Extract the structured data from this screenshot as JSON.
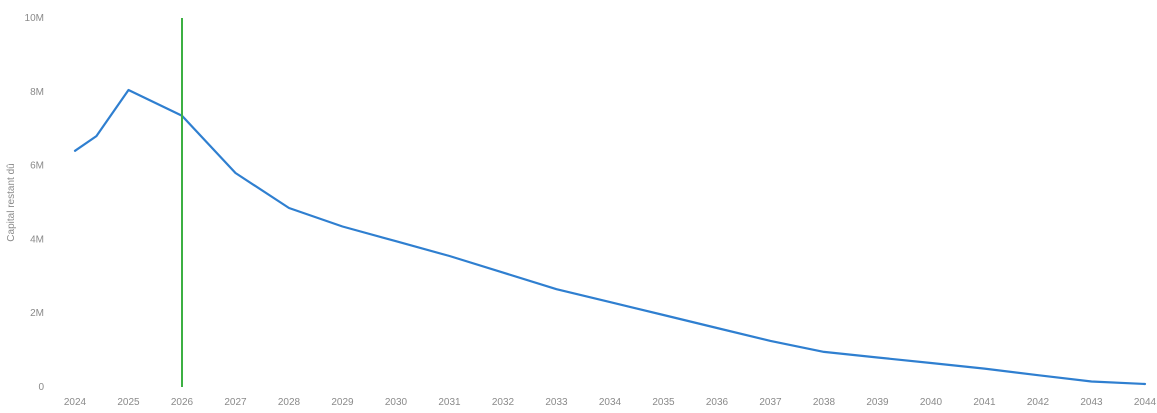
{
  "chart_data": {
    "type": "line",
    "title": "",
    "xlabel": "",
    "ylabel": "Capital restant dû",
    "x": [
      "2024",
      "2025",
      "2026",
      "2027",
      "2028",
      "2029",
      "2030",
      "2031",
      "2032",
      "2033",
      "2034",
      "2035",
      "2036",
      "2037",
      "2038",
      "2039",
      "2040",
      "2041",
      "2042",
      "2043",
      "2044"
    ],
    "series": [
      {
        "color": "#2f7fd0",
        "values": [
          6400000,
          6800000,
          8050000,
          7350000,
          5800000,
          4850000,
          4350000,
          3950000,
          3550000,
          3100000,
          2650000,
          2300000,
          1950000,
          1600000,
          1250000,
          950000,
          800000,
          650000,
          500000,
          320000,
          150000,
          80000
        ],
        "x_values": [
          2024,
          2024.4,
          2025,
          2026,
          2027,
          2028,
          2029,
          2030,
          2031,
          2032,
          2033,
          2034,
          2035,
          2036,
          2037,
          2038,
          2039,
          2040,
          2041,
          2042,
          2043,
          2044
        ]
      }
    ],
    "ylim": [
      0,
      10000000
    ],
    "yticks": [
      0,
      2000000,
      4000000,
      6000000,
      8000000,
      10000000
    ],
    "ytick_labels": [
      "0",
      "2M",
      "4M",
      "6M",
      "8M",
      "10M"
    ],
    "marker": {
      "x": 2026,
      "color": "#3cb043"
    },
    "grid": false,
    "legend": "none"
  }
}
